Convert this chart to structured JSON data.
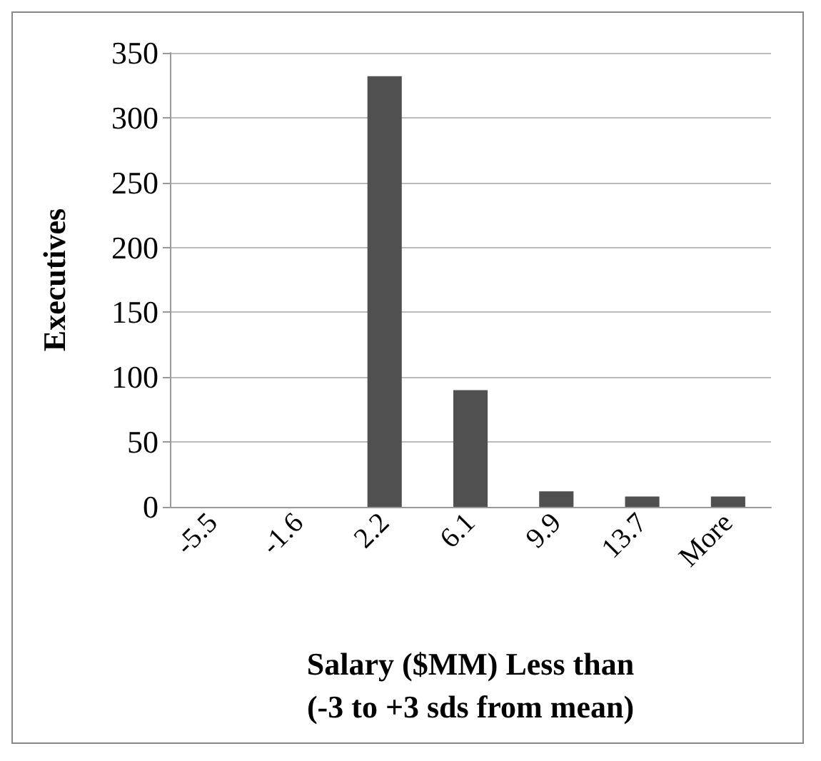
{
  "chart_data": {
    "type": "bar",
    "xlabel": "Salary ($MM) Less than\n(-3 to +3 sds from mean)",
    "ylabel": "Executives",
    "categories": [
      "-5.5",
      "-1.6",
      "2.2",
      "6.1",
      "9.9",
      "13.7",
      "More"
    ],
    "values": [
      0,
      0,
      332,
      90,
      12,
      8,
      8
    ],
    "color": "#505050",
    "ylim": [
      0,
      350
    ],
    "yticks": [
      0,
      50,
      100,
      150,
      200,
      250,
      300,
      350
    ],
    "grid": "y"
  }
}
